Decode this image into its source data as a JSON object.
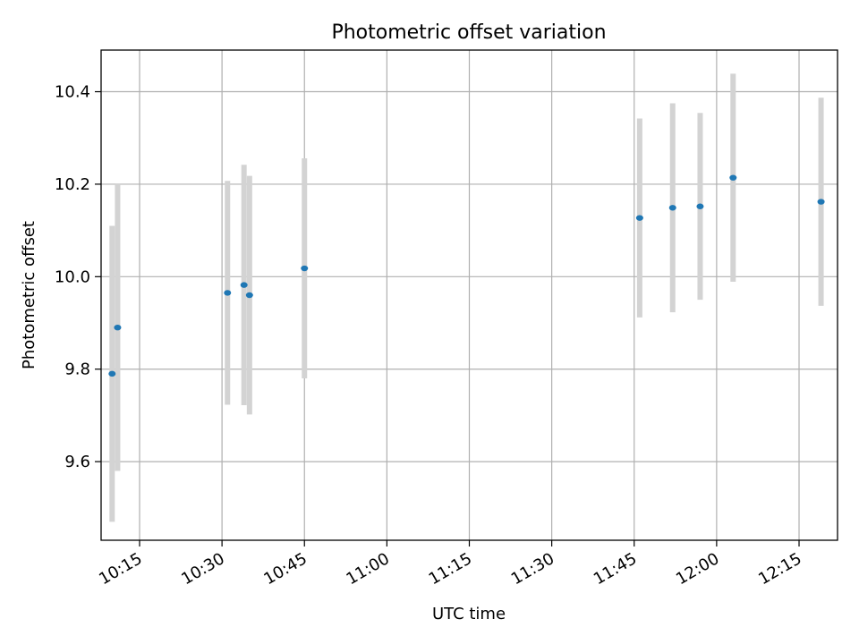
{
  "chart_data": {
    "type": "scatter",
    "title": "Photometric offset variation",
    "xlabel": "UTC time",
    "ylabel": "Photometric offset",
    "grid": true,
    "x_axis": {
      "range": [
        "10:08",
        "12:22"
      ],
      "ticks": [
        "10:15",
        "10:30",
        "10:45",
        "11:00",
        "11:15",
        "11:30",
        "11:45",
        "12:00",
        "12:15"
      ]
    },
    "y_axis": {
      "range": [
        9.43,
        10.49
      ],
      "ticks": [
        9.6,
        9.8,
        10.0,
        10.2,
        10.4
      ],
      "tick_labels": [
        "9.6",
        "9.8",
        "10.0",
        "10.2",
        "10.4"
      ]
    },
    "point_color": "#1f77b4",
    "errorbar_color": "#d3d3d3",
    "points": [
      {
        "time": "10:10",
        "y": 9.79,
        "err": 0.32
      },
      {
        "time": "10:11",
        "y": 9.89,
        "err": 0.31
      },
      {
        "time": "10:31",
        "y": 9.965,
        "err": 0.242
      },
      {
        "time": "10:34",
        "y": 9.982,
        "err": 0.26
      },
      {
        "time": "10:35",
        "y": 9.96,
        "err": 0.258
      },
      {
        "time": "10:45",
        "y": 10.018,
        "err": 0.238
      },
      {
        "time": "11:46",
        "y": 10.127,
        "err": 0.215
      },
      {
        "time": "11:52",
        "y": 10.149,
        "err": 0.226
      },
      {
        "time": "11:57",
        "y": 10.152,
        "err": 0.202
      },
      {
        "time": "12:03",
        "y": 10.214,
        "err": 0.225
      },
      {
        "time": "12:19",
        "y": 10.162,
        "err": 0.225
      }
    ]
  }
}
